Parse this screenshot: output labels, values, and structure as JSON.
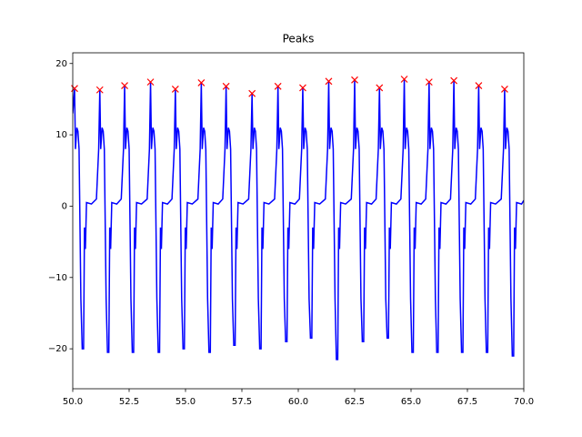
{
  "chart_data": {
    "type": "line",
    "title": "Peaks",
    "xlim": [
      50,
      70
    ],
    "ylim": [
      -25.6,
      21.5
    ],
    "xticks": [
      {
        "value": 50,
        "label": "50.0"
      },
      {
        "value": 52.5,
        "label": "52.5"
      },
      {
        "value": 55,
        "label": "55.0"
      },
      {
        "value": 57.5,
        "label": "57.5"
      },
      {
        "value": 60,
        "label": "60.0"
      },
      {
        "value": 62.5,
        "label": "62.5"
      },
      {
        "value": 65,
        "label": "65.0"
      },
      {
        "value": 67.5,
        "label": "67.5"
      },
      {
        "value": 70,
        "label": "70.0"
      }
    ],
    "yticks": [
      {
        "value": -20,
        "label": "−20"
      },
      {
        "value": -10,
        "label": "−10"
      },
      0,
      10,
      20
    ],
    "series": [
      {
        "type": "line",
        "color": "#0000ff",
        "x": [
          50.0,
          50.08,
          50.12,
          50.18,
          50.23,
          50.28,
          50.36,
          50.42,
          50.48,
          50.52,
          50.56,
          50.61,
          50.83,
          51.05,
          51.15,
          51.2,
          51.24,
          51.3,
          51.35,
          51.4,
          51.48,
          51.54,
          51.6,
          51.64,
          51.68,
          51.73,
          51.95,
          52.15,
          52.25,
          52.3,
          52.34,
          52.4,
          52.45,
          52.5,
          52.58,
          52.64,
          52.7,
          52.74,
          52.78,
          52.83,
          53.05,
          53.3,
          53.4,
          53.45,
          53.49,
          53.55,
          53.6,
          53.65,
          53.73,
          53.79,
          53.85,
          53.89,
          53.93,
          53.98,
          54.2,
          54.4,
          54.5,
          54.55,
          54.59,
          54.65,
          54.7,
          54.75,
          54.83,
          54.89,
          54.95,
          54.99,
          55.03,
          55.08,
          55.3,
          55.55,
          55.65,
          55.7,
          55.74,
          55.8,
          55.85,
          55.9,
          55.98,
          56.04,
          56.1,
          56.14,
          56.18,
          56.23,
          56.45,
          56.65,
          56.75,
          56.8,
          56.84,
          56.9,
          56.95,
          57.0,
          57.08,
          57.14,
          57.2,
          57.24,
          57.28,
          57.33,
          57.55,
          57.8,
          57.9,
          57.95,
          57.99,
          58.05,
          58.1,
          58.15,
          58.23,
          58.29,
          58.35,
          58.39,
          58.43,
          58.48,
          58.7,
          58.95,
          59.05,
          59.1,
          59.14,
          59.2,
          59.25,
          59.3,
          59.38,
          59.44,
          59.5,
          59.54,
          59.58,
          59.63,
          59.85,
          60.05,
          60.15,
          60.2,
          60.24,
          60.3,
          60.35,
          60.4,
          60.48,
          60.54,
          60.6,
          60.64,
          60.68,
          60.73,
          60.95,
          61.2,
          61.3,
          61.35,
          61.39,
          61.45,
          61.5,
          61.55,
          61.63,
          61.69,
          61.75,
          61.79,
          61.83,
          61.88,
          62.1,
          62.35,
          62.45,
          62.5,
          62.54,
          62.6,
          62.65,
          62.7,
          62.78,
          62.84,
          62.9,
          62.94,
          62.98,
          63.03,
          63.25,
          63.45,
          63.55,
          63.6,
          63.64,
          63.7,
          63.75,
          63.8,
          63.88,
          63.94,
          64.0,
          64.04,
          64.08,
          64.13,
          64.35,
          64.55,
          64.65,
          64.7,
          64.74,
          64.8,
          64.85,
          64.9,
          64.98,
          65.04,
          65.1,
          65.14,
          65.18,
          65.23,
          65.45,
          65.65,
          65.75,
          65.8,
          65.84,
          65.9,
          65.95,
          66.0,
          66.08,
          66.14,
          66.2,
          66.24,
          66.28,
          66.33,
          66.55,
          66.75,
          66.85,
          66.9,
          66.94,
          67.0,
          67.05,
          67.1,
          67.18,
          67.24,
          67.3,
          67.34,
          67.38,
          67.43,
          67.65,
          67.85,
          67.95,
          68.0,
          68.04,
          68.1,
          68.15,
          68.2,
          68.28,
          68.34,
          68.4,
          68.44,
          68.48,
          68.53,
          68.75,
          69.0,
          69.1,
          69.15,
          69.19,
          69.25,
          69.3,
          69.35,
          69.43,
          69.49,
          69.55,
          69.59,
          69.63,
          69.68,
          69.9,
          70.0
        ],
        "values": [
          13,
          16.5,
          8,
          11,
          10.5,
          8,
          -13,
          -20,
          -20,
          -3,
          -6,
          0.5,
          0.3,
          1,
          8,
          16.3,
          8,
          11,
          10.5,
          8,
          -13,
          -20.5,
          -20.5,
          -3,
          -6,
          0.5,
          0.3,
          1,
          8,
          16.9,
          8,
          11,
          10.5,
          8,
          -13,
          -20.5,
          -20.5,
          -3,
          -6,
          0.5,
          0.3,
          1,
          8,
          17.4,
          8,
          11,
          10.5,
          8,
          -13,
          -20.5,
          -20.5,
          -3,
          -6,
          0.5,
          0.3,
          1,
          8,
          16.4,
          8,
          11,
          10.5,
          8,
          -13,
          -20,
          -20,
          -3,
          -6,
          0.5,
          0.3,
          1,
          8,
          17.3,
          8,
          11,
          10.5,
          8,
          -13,
          -20.5,
          -20.5,
          -3,
          -6,
          0.5,
          0.3,
          1,
          8,
          16.8,
          8,
          11,
          10.5,
          8,
          -13,
          -19.5,
          -19.5,
          -3,
          -6,
          0.5,
          0.3,
          1,
          8,
          15.8,
          8,
          11,
          10.5,
          8,
          -13,
          -20,
          -20,
          -3,
          -6,
          0.5,
          0.3,
          1,
          8,
          16.8,
          8,
          11,
          10.5,
          8,
          -13,
          -19,
          -19,
          -3,
          -6,
          0.5,
          0.3,
          1,
          8,
          16.6,
          8,
          11,
          10.5,
          8,
          -13,
          -18.5,
          -18.5,
          -3,
          -6,
          0.5,
          0.3,
          1,
          8,
          17.5,
          8,
          11,
          10.5,
          8,
          -13,
          -21.5,
          -21.5,
          -3,
          -6,
          0.5,
          0.3,
          1,
          8,
          17.7,
          8,
          11,
          10.5,
          8,
          -13,
          -19,
          -19,
          -3,
          -6,
          0.5,
          0.3,
          1,
          8,
          16.6,
          8,
          11,
          10.5,
          8,
          -13,
          -18.5,
          -18.5,
          -3,
          -6,
          0.5,
          0.3,
          1,
          8,
          17.8,
          8,
          11,
          10.5,
          8,
          -13,
          -20.5,
          -20.5,
          -3,
          -6,
          0.5,
          0.3,
          1,
          8,
          17.4,
          8,
          11,
          10.5,
          8,
          -13,
          -20.5,
          -20.5,
          -3,
          -6,
          0.5,
          0.3,
          1,
          8,
          17.6,
          8,
          11,
          10.5,
          8,
          -13,
          -20.5,
          -20.5,
          -3,
          -6,
          0.5,
          0.3,
          1,
          8,
          16.9,
          8,
          11,
          10.5,
          8,
          -13,
          -20.5,
          -20.5,
          -3,
          -6,
          0.5,
          0.3,
          1,
          8,
          16.4,
          8,
          11,
          10.5,
          8,
          -13,
          -21,
          -21,
          -3,
          -6,
          0.5,
          0.3,
          0.8
        ]
      },
      {
        "type": "scatter",
        "marker": "x",
        "color": "#ff0000",
        "x": [
          50.08,
          51.2,
          52.3,
          53.45,
          54.55,
          55.7,
          56.8,
          57.95,
          59.1,
          60.2,
          61.35,
          62.5,
          63.6,
          64.7,
          65.8,
          66.9,
          68.0,
          69.15
        ],
        "values": [
          16.5,
          16.3,
          16.9,
          17.4,
          16.4,
          17.3,
          16.8,
          15.8,
          16.8,
          16.6,
          17.5,
          17.7,
          16.6,
          17.8,
          17.4,
          17.6,
          16.9,
          16.4
        ]
      }
    ]
  }
}
